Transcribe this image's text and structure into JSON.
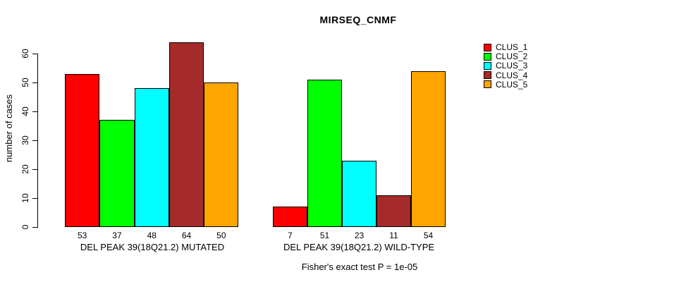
{
  "chart_data": {
    "type": "bar",
    "title": "MIRSEQ_CNMF",
    "ylabel": "number of cases",
    "xlabel": "",
    "ylim": [
      0,
      60
    ],
    "yticks": [
      0,
      10,
      20,
      30,
      40,
      50,
      60
    ],
    "grid": false,
    "legend_position": "right",
    "categories": [
      "DEL PEAK 39(18Q21.2) MUTATED",
      "DEL PEAK 39(18Q21.2) WILD-TYPE"
    ],
    "series": [
      {
        "name": "CLUS_1",
        "color": "#FF0000",
        "values": [
          53,
          7
        ]
      },
      {
        "name": "CLUS_2",
        "color": "#00FF00",
        "values": [
          37,
          51
        ]
      },
      {
        "name": "CLUS_3",
        "color": "#00FFFF",
        "values": [
          48,
          23
        ]
      },
      {
        "name": "CLUS_4",
        "color": "#A52A2A",
        "values": [
          64,
          11
        ]
      },
      {
        "name": "CLUS_5",
        "color": "#FFA500",
        "values": [
          50,
          54
        ]
      }
    ],
    "bar_value_labels_shown": true,
    "footer": "Fisher's exact test P = 1e-05"
  }
}
